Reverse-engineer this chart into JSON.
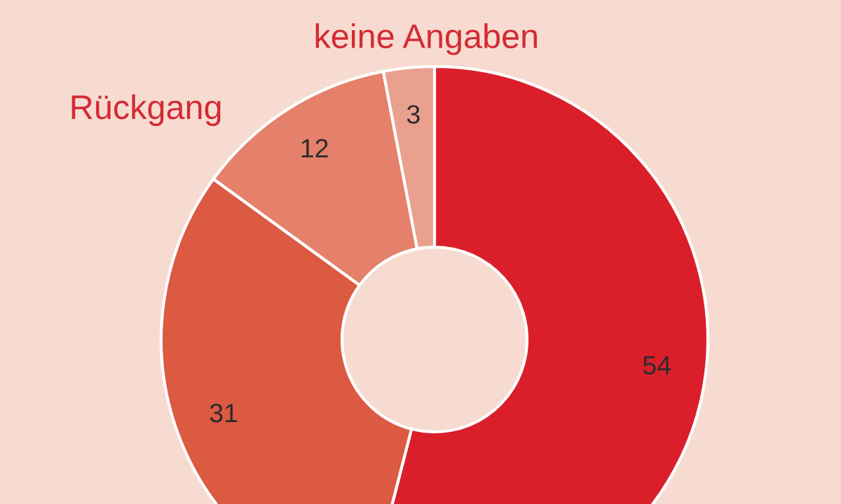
{
  "chart_data": {
    "type": "donut",
    "categories": [
      null,
      null,
      "Rückgang",
      "keine Angaben"
    ],
    "values": [
      54,
      31,
      12,
      3
    ],
    "colors": [
      "#da1f2b",
      "#dc5942",
      "#e5806a",
      "#e9a08e"
    ],
    "data_labels": true
  }
}
